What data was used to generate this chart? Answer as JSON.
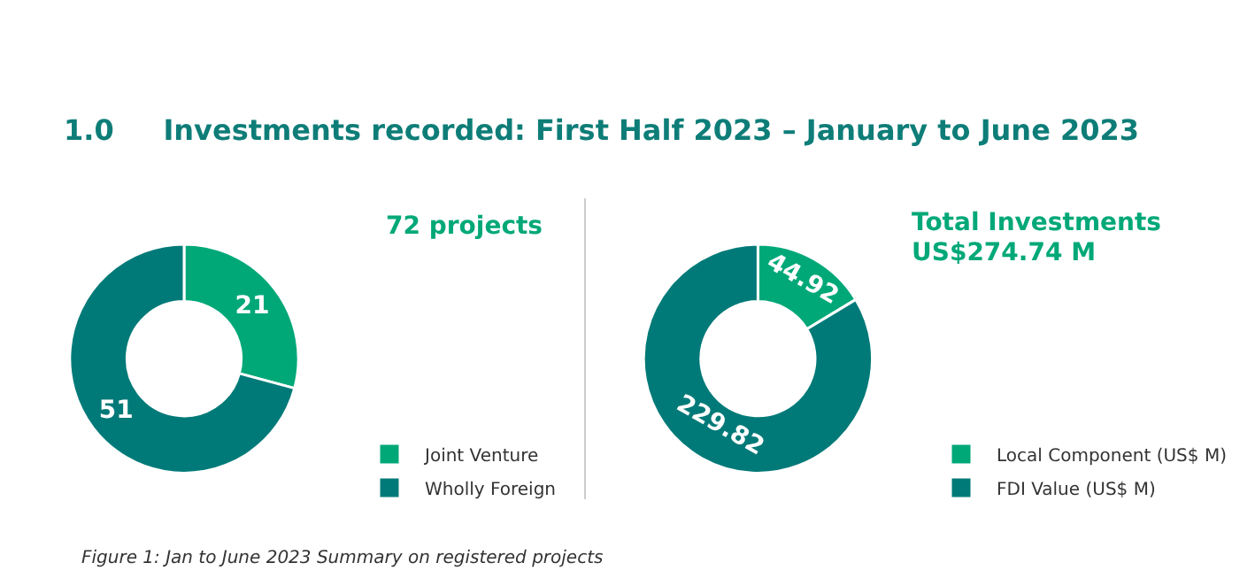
{
  "chart_data": [
    {
      "type": "donut",
      "title": "1.0     Investments recorded: First Half 2023 – January to June 2023",
      "categories": [
        "Joint Venture",
        "Wholly Foreign"
      ],
      "values": [
        21,
        51
      ],
      "colors": [
        "#00a878",
        "#007a78"
      ],
      "data_labels": true,
      "legend": "bottom right",
      "annotations": [
        "72 projects",
        "Figure 1: Jan to June 2023 Summary on registered projects"
      ]
    },
    {
      "type": "donut",
      "categories": [
        "Local Component (US$ M)",
        "FDI Value (US$ M)"
      ],
      "values": [
        44.92,
        229.82
      ],
      "colors": [
        "#00a878",
        "#007a78"
      ],
      "data_labels": true,
      "legend": "bottom right",
      "annotations": [
        "Total Investments\nUS$274.74 M"
      ]
    }
  ]
}
